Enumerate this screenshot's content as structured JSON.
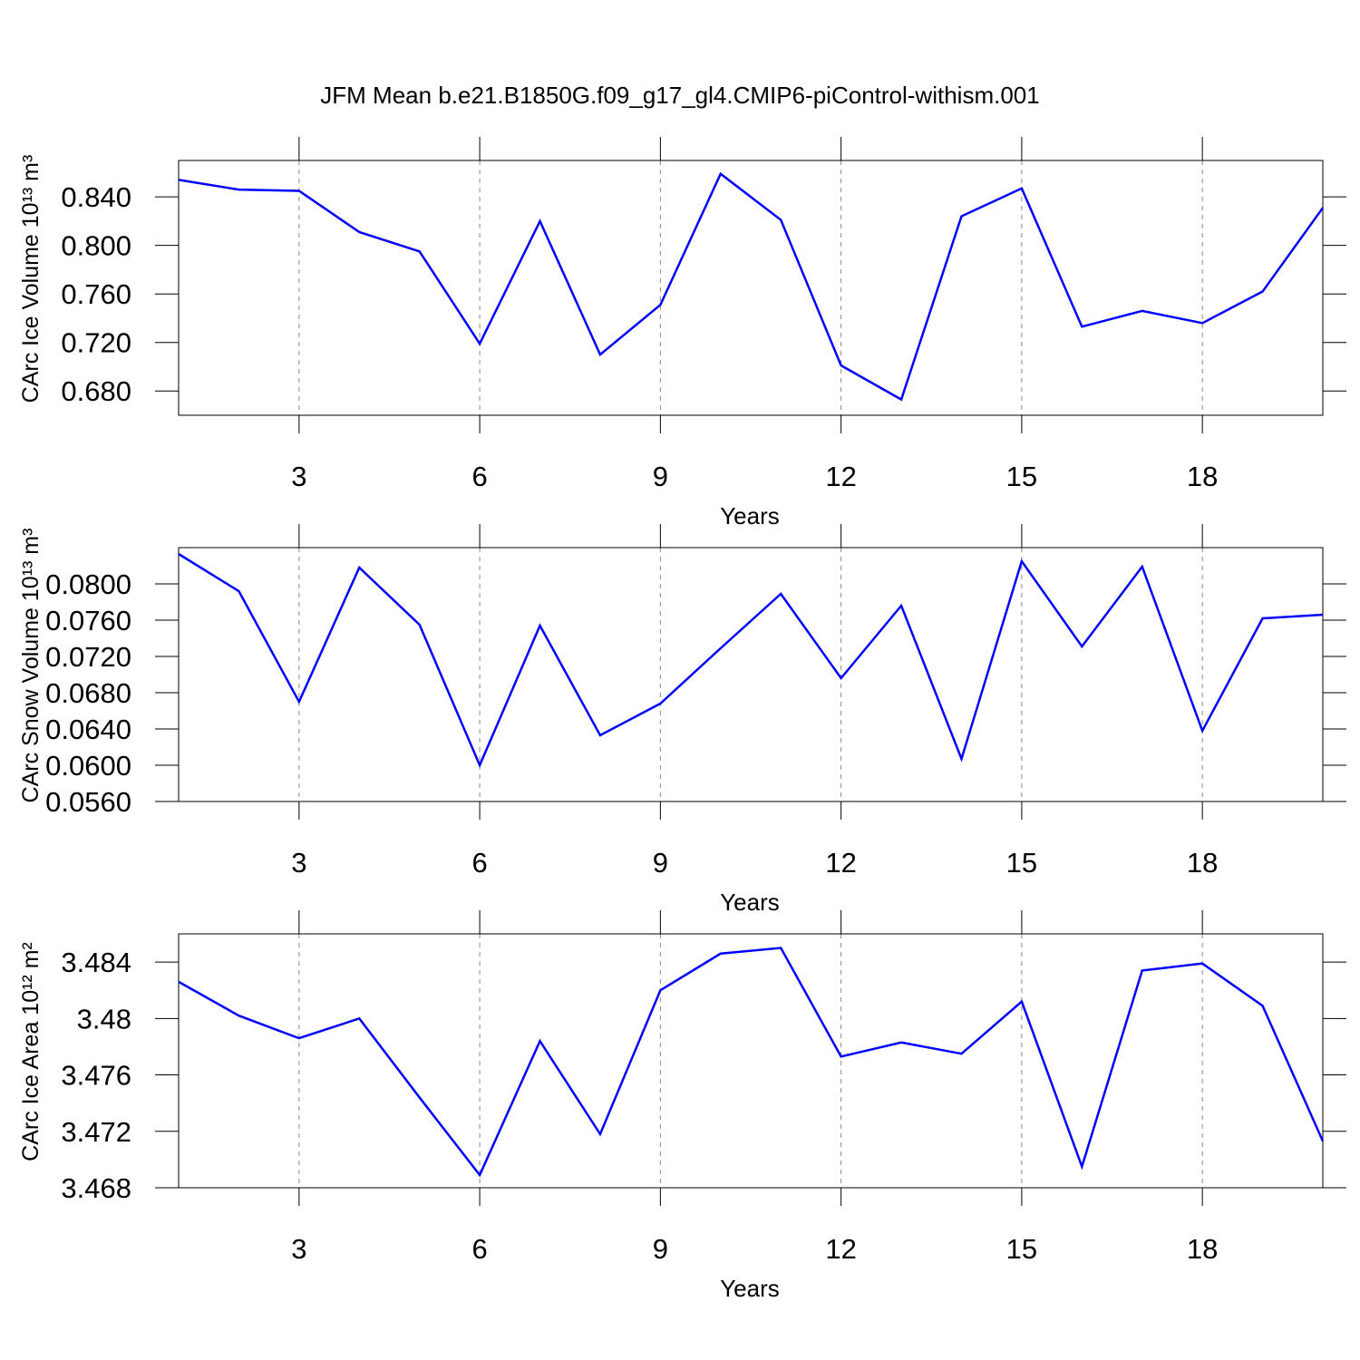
{
  "title": "JFM Mean b.e21.B1850G.f09_g17_gl4.CMIP6-piControl-withism.001",
  "chart_data": [
    {
      "type": "line",
      "xlabel": "Years",
      "ylabel": "CArc Ice Volume 10¹³ m³",
      "color": "#0000ff",
      "grid": "x",
      "x": [
        1,
        2,
        3,
        4,
        5,
        6,
        7,
        8,
        9,
        10,
        11,
        12,
        13,
        14,
        15,
        16,
        17,
        18,
        19,
        20
      ],
      "values": [
        0.854,
        0.846,
        0.845,
        0.811,
        0.795,
        0.719,
        0.82,
        0.71,
        0.751,
        0.859,
        0.821,
        0.701,
        0.673,
        0.824,
        0.847,
        0.733,
        0.746,
        0.736,
        0.762,
        0.831
      ],
      "xlim": [
        1,
        20
      ],
      "xticks": [
        3,
        6,
        9,
        12,
        15,
        18
      ],
      "ylim": [
        0.66,
        0.87
      ],
      "yticks": [
        {
          "value": 0.68,
          "label": "0.680"
        },
        {
          "value": 0.72,
          "label": "0.720"
        },
        {
          "value": 0.76,
          "label": "0.760"
        },
        {
          "value": 0.8,
          "label": "0.800"
        },
        {
          "value": 0.84,
          "label": "0.840"
        }
      ]
    },
    {
      "type": "line",
      "xlabel": "Years",
      "ylabel": "CArc Snow Volume 10¹³ m³",
      "color": "#0000ff",
      "grid": "x",
      "x": [
        1,
        2,
        3,
        4,
        5,
        6,
        7,
        8,
        9,
        10,
        11,
        12,
        13,
        14,
        15,
        16,
        17,
        18,
        19,
        20
      ],
      "values": [
        0.0833,
        0.0792,
        0.067,
        0.0818,
        0.0755,
        0.06,
        0.0754,
        0.0633,
        0.0668,
        0.0729,
        0.0789,
        0.0696,
        0.0776,
        0.0607,
        0.0825,
        0.0731,
        0.0819,
        0.0638,
        0.0762,
        0.0766
      ],
      "xlim": [
        1,
        20
      ],
      "xticks": [
        3,
        6,
        9,
        12,
        15,
        18
      ],
      "ylim": [
        0.056,
        0.084
      ],
      "yticks": [
        {
          "value": 0.056,
          "label": "0.0560"
        },
        {
          "value": 0.06,
          "label": "0.0600"
        },
        {
          "value": 0.064,
          "label": "0.0640"
        },
        {
          "value": 0.068,
          "label": "0.0680"
        },
        {
          "value": 0.072,
          "label": "0.0720"
        },
        {
          "value": 0.076,
          "label": "0.0760"
        },
        {
          "value": 0.08,
          "label": "0.0800"
        }
      ]
    },
    {
      "type": "line",
      "xlabel": "Years",
      "ylabel": "CArc Ice Area 10¹² m²",
      "color": "#0000ff",
      "grid": "x",
      "x": [
        1,
        2,
        3,
        4,
        5,
        6,
        7,
        8,
        9,
        10,
        11,
        12,
        13,
        14,
        15,
        16,
        17,
        18,
        19,
        20
      ],
      "values": [
        3.4826,
        3.4802,
        3.4786,
        3.48,
        3.4744,
        3.4689,
        3.4784,
        3.4718,
        3.482,
        3.4846,
        3.485,
        3.4773,
        3.4783,
        3.4775,
        3.4812,
        3.4695,
        3.4834,
        3.4839,
        3.4809,
        3.4713
      ],
      "xlim": [
        1,
        20
      ],
      "xticks": [
        3,
        6,
        9,
        12,
        15,
        18
      ],
      "ylim": [
        3.468,
        3.486
      ],
      "yticks": [
        3.468,
        3.472,
        3.476,
        3.48,
        3.484
      ]
    }
  ]
}
